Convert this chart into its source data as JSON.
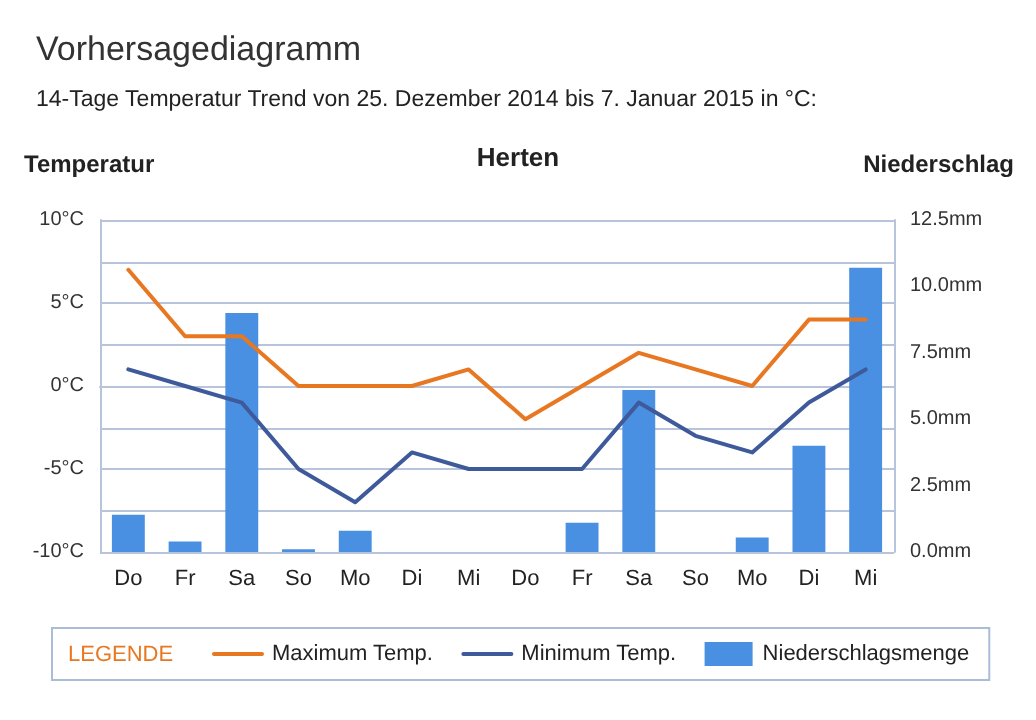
{
  "chart_data": {
    "type": "bar",
    "title": "Vorhersagediagramm",
    "subtitle": "14-Tage Temperatur Trend von 25. Dezember 2014 bis 7. Januar 2015 in °C:",
    "annotations": [
      "Herten"
    ],
    "ylabel": "Temperatur",
    "y2label": "Niederschlag",
    "legend_title": "LEGENDE",
    "categories": [
      "Do",
      "Fr",
      "Sa",
      "So",
      "Mo",
      "Di",
      "Mi",
      "Do",
      "Fr",
      "Sa",
      "So",
      "Mo",
      "Di",
      "Mi"
    ],
    "series": [
      {
        "name": "Maximum Temp.",
        "type": "line",
        "color": "#e87722",
        "values": [
          7,
          3,
          3,
          0,
          0,
          0,
          1,
          -2,
          0,
          2,
          1,
          0,
          4,
          4
        ]
      },
      {
        "name": "Minimum Temp.",
        "type": "line",
        "color": "#3f5a9a",
        "values": [
          1,
          0,
          -1,
          -5,
          -7,
          -4,
          -5,
          -5,
          -5,
          -1,
          -3,
          -4,
          -1,
          1
        ]
      },
      {
        "name": "Niederschlagsmenge",
        "axis": "y2",
        "color": "#4a90e2",
        "values": [
          1.4,
          0.4,
          9.0,
          0.1,
          0.8,
          0,
          0,
          0,
          1.1,
          6.1,
          0,
          0.55,
          4.0,
          10.7
        ]
      }
    ],
    "ylim": [
      -10,
      10
    ],
    "yticks": [
      {
        "value": -10,
        "label": "-10°C"
      },
      {
        "value": -7.5,
        "label": null
      },
      {
        "value": -5,
        "label": "-5°C"
      },
      {
        "value": -2.5,
        "label": null
      },
      {
        "value": 0,
        "label": "0°C"
      },
      {
        "value": 2.5,
        "label": null
      },
      {
        "value": 5,
        "label": "5°C"
      },
      {
        "value": 7.5,
        "label": null
      },
      {
        "value": 10,
        "label": "10°C"
      }
    ],
    "y2lim": [
      0,
      12.5
    ],
    "y2ticks": [
      {
        "value": 0,
        "label": "0.0mm"
      },
      {
        "value": 2.5,
        "label": "2.5mm"
      },
      {
        "value": 5,
        "label": "5.0mm"
      },
      {
        "value": 7.5,
        "label": "7.5mm"
      },
      {
        "value": 10,
        "label": "10.0mm"
      },
      {
        "value": 12.5,
        "label": "12.5mm"
      }
    ],
    "grid": "y",
    "legend": "bottom",
    "marker": "none",
    "line_style": "solid"
  }
}
